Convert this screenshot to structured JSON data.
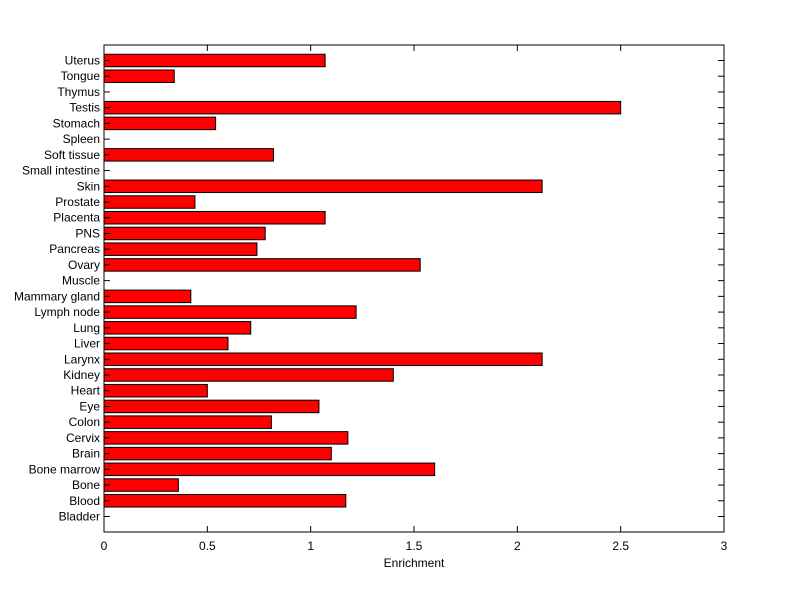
{
  "chart_data": {
    "type": "bar",
    "orientation": "horizontal",
    "title": "",
    "xlabel": "Enrichment",
    "ylabel": "",
    "xlim": [
      0,
      3
    ],
    "xticks": [
      0,
      0.5,
      1,
      1.5,
      2,
      2.5,
      3
    ],
    "xtick_labels": [
      "0",
      "0.5",
      "1",
      "1.5",
      "2",
      "2.5",
      "3"
    ],
    "grid": false,
    "legend": "none",
    "bar_color": "#ff0000",
    "bar_edge_color": "#000000",
    "categories": [
      "Bladder",
      "Blood",
      "Bone",
      "Bone marrow",
      "Brain",
      "Cervix",
      "Colon",
      "Eye",
      "Heart",
      "Kidney",
      "Larynx",
      "Liver",
      "Lung",
      "Lymph node",
      "Mammary gland",
      "Muscle",
      "Ovary",
      "Pancreas",
      "PNS",
      "Placenta",
      "Prostate",
      "Skin",
      "Small intestine",
      "Soft tissue",
      "Spleen",
      "Stomach",
      "Testis",
      "Thymus",
      "Tongue",
      "Uterus"
    ],
    "values": [
      0,
      1.17,
      0.36,
      1.6,
      1.1,
      1.18,
      0.81,
      1.04,
      0.5,
      1.4,
      2.12,
      0.6,
      0.71,
      1.22,
      0.42,
      0,
      1.53,
      0.74,
      0.78,
      1.07,
      0.44,
      2.12,
      0,
      0.82,
      0,
      0.54,
      2.5,
      0,
      0.34,
      1.07
    ]
  }
}
